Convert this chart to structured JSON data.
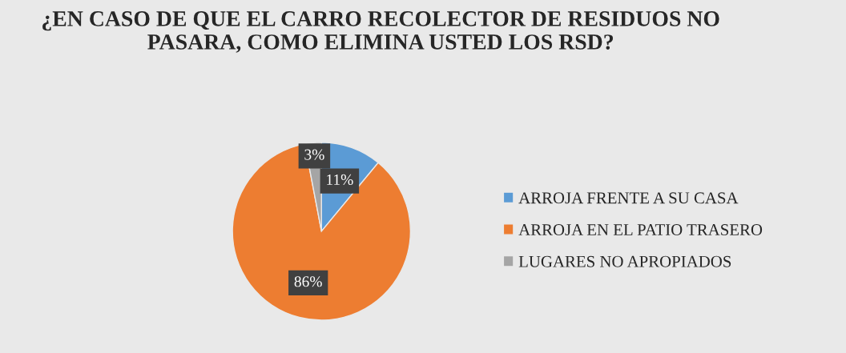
{
  "chart_data": {
    "type": "pie",
    "title": "¿EN CASO DE QUE EL CARRO RECOLECTOR DE RESIDUOS NO PASARA, COMO ELIMINA USTED LOS RSD?",
    "categories": [
      "ARROJA FRENTE A SU CASA",
      "ARROJA EN EL PATIO TRASERO",
      "LUGARES NO APROPIADOS"
    ],
    "values": [
      11,
      86,
      3
    ],
    "colors": [
      "#5b9bd5",
      "#ed7d31",
      "#a5a5a5"
    ],
    "value_labels": [
      "11%",
      "86%",
      "3%"
    ],
    "legend": "right"
  }
}
